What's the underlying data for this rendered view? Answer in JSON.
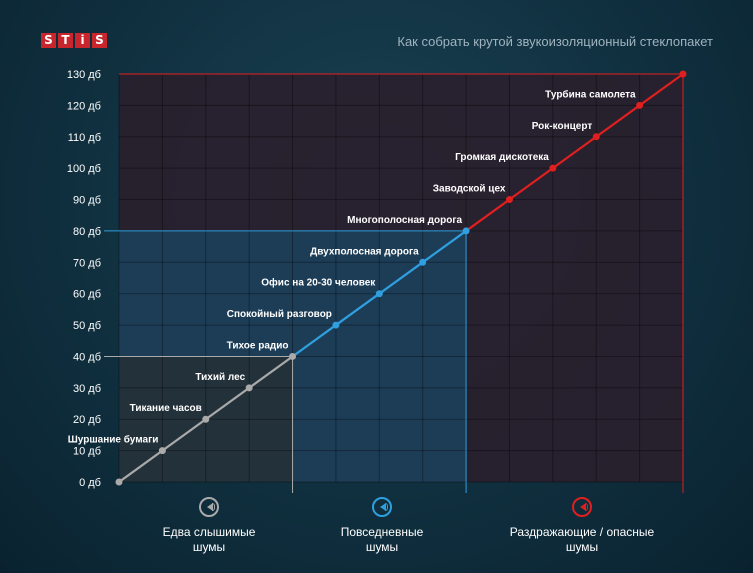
{
  "header": {
    "logo_letters": [
      "S",
      "T",
      "i",
      "S"
    ],
    "title": "Как собрать крутой звукоизоляционный стеклопакет"
  },
  "colors": {
    "zone_quiet": "#aaaaaa",
    "zone_everyday": "#2f9fe0",
    "zone_loud": "#e01f1f",
    "logo": "#c8262c"
  },
  "zones": [
    {
      "label_line1": "Едва слышимые",
      "label_line2": "шумы",
      "icon": "speaker-icon"
    },
    {
      "label_line1": "Повседневные",
      "label_line2": "шумы",
      "icon": "speaker-icon"
    },
    {
      "label_line1": "Раздражающие / опасные",
      "label_line2": "шумы",
      "icon": "speaker-icon"
    }
  ],
  "chart_data": {
    "type": "line",
    "ylim": [
      0,
      130
    ],
    "yticks": [
      "0 дб",
      "10 дб",
      "20 дб",
      "30 дб",
      "40 дб",
      "50 дб",
      "60 дб",
      "70 дб",
      "80 дб",
      "90 дб",
      "100 дб",
      "110 дб",
      "120 дб",
      "130 дб"
    ],
    "grid": true,
    "zone_boundaries_db": [
      40,
      80
    ],
    "points": [
      {
        "x": 0,
        "y": 0,
        "label": ""
      },
      {
        "x": 1,
        "y": 10,
        "label": "Шуршание бумаги"
      },
      {
        "x": 2,
        "y": 20,
        "label": "Тикание часов"
      },
      {
        "x": 3,
        "y": 30,
        "label": "Тихий лес"
      },
      {
        "x": 4,
        "y": 40,
        "label": "Тихое радио"
      },
      {
        "x": 5,
        "y": 50,
        "label": "Спокойный разговор"
      },
      {
        "x": 6,
        "y": 60,
        "label": "Офис на 20-30 человек"
      },
      {
        "x": 7,
        "y": 70,
        "label": "Двухполосная дорога"
      },
      {
        "x": 8,
        "y": 80,
        "label": "Многополосная дорога"
      },
      {
        "x": 9,
        "y": 90,
        "label": "Заводской цех"
      },
      {
        "x": 10,
        "y": 100,
        "label": "Громкая дискотека"
      },
      {
        "x": 11,
        "y": 110,
        "label": "Рок-концерт"
      },
      {
        "x": 12,
        "y": 120,
        "label": "Турбина самолета"
      },
      {
        "x": 13,
        "y": 130,
        "label": ""
      }
    ]
  }
}
